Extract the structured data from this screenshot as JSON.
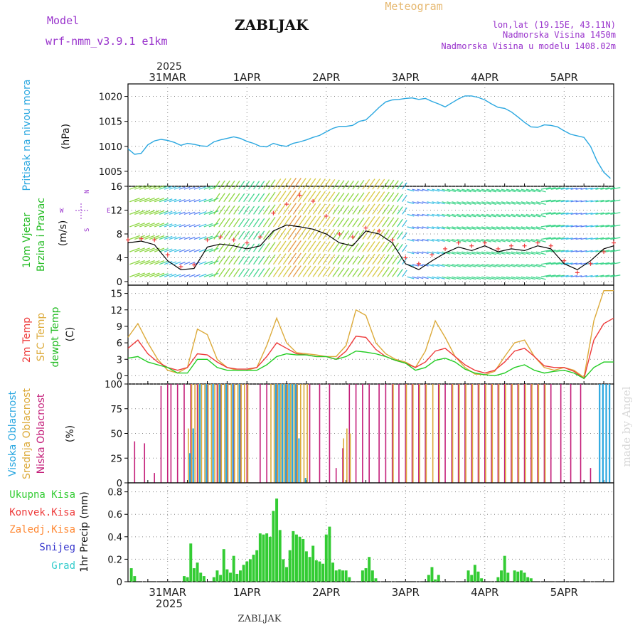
{
  "header": {
    "model_label": "Model",
    "model_name": "wrf-nmm_v3.9.1  e1km",
    "location_title": "ZABLJAK",
    "product": "Meteogram",
    "coords": "lon,lat (19.15E, 43.11N)",
    "elevation": "Nadmorska Visina 1450m",
    "model_elevation": "Nadmorska Visina u modelu 1408.02m"
  },
  "footer": {
    "location_title": "ZABLJAK",
    "credit": "made by Angel"
  },
  "colors": {
    "pressure": "#2aa7e0",
    "temp2m": "#ee3b3b",
    "sfc_temp": "#dcaa3a",
    "dewpt": "#22cc22",
    "wind_speed": "#000000",
    "gust_marker": "#ee3b3b",
    "cloud_high": "#2aa7e0",
    "cloud_mid": "#dcaa3a",
    "cloud_low": "#c41f7a",
    "precip_total": "#33cc33",
    "precip_conv": "#ee3b3b",
    "precip_frz": "#ff8833",
    "precip_snow": "#3333cc",
    "precip_grad": "#33cccc",
    "grid": "#888888",
    "title_gold": "#e6b870",
    "purple": "#9933cc"
  },
  "time_axis": {
    "year_label": "2025",
    "day_labels": [
      "31MAR",
      "1APR",
      "2APR",
      "3APR",
      "4APR",
      "5APR"
    ],
    "day_positions_hours": [
      12,
      36,
      60,
      84,
      108,
      132
    ],
    "range_hours": [
      0,
      147
    ]
  },
  "chart_data": [
    {
      "type": "line",
      "panel": "pressure",
      "ylabel_side": "Pritisak na nivou mora",
      "ylabel": "(hPa)",
      "yticks": [
        "1020",
        "1015",
        "1010",
        "1005"
      ],
      "ylim": [
        1002,
        1022.5
      ],
      "grid": true,
      "x_hours": [
        0,
        2,
        4,
        6,
        8,
        10,
        12,
        14,
        16,
        18,
        20,
        22,
        24,
        26,
        28,
        30,
        32,
        34,
        36,
        38,
        40,
        42,
        44,
        46,
        48,
        50,
        52,
        54,
        56,
        58,
        60,
        62,
        64,
        66,
        68,
        70,
        72,
        74,
        76,
        78,
        80,
        82,
        84,
        86,
        88,
        90,
        92,
        94,
        96,
        98,
        100,
        102,
        104,
        106,
        108,
        110,
        112,
        114,
        116,
        118,
        120,
        122,
        124,
        126,
        128,
        130,
        132,
        134,
        136,
        138,
        140,
        142,
        144,
        146
      ],
      "series": [
        {
          "values": [
            1009.5,
            1008.4,
            1008.6,
            1010.3,
            1011.1,
            1011.4,
            1011.2,
            1010.8,
            1010.2,
            1010.6,
            1010.4,
            1010.1,
            1010.0,
            1010.9,
            1011.3,
            1011.6,
            1011.9,
            1011.6,
            1011.0,
            1010.6,
            1010.0,
            1009.9,
            1010.6,
            1010.2,
            1010.0,
            1010.6,
            1010.9,
            1011.3,
            1011.8,
            1012.2,
            1012.9,
            1013.6,
            1014.0,
            1014.0,
            1014.2,
            1015.0,
            1015.3,
            1016.5,
            1017.8,
            1018.9,
            1019.3,
            1019.4,
            1019.6,
            1019.7,
            1019.4,
            1019.6,
            1019.0,
            1018.5,
            1017.9,
            1018.7,
            1019.5,
            1020.1,
            1020.1,
            1019.8,
            1019.3,
            1018.5,
            1017.8,
            1017.6,
            1016.9,
            1015.9,
            1014.8,
            1013.9,
            1013.8,
            1014.3,
            1014.2,
            1013.9,
            1013.1,
            1012.4,
            1012.1,
            1011.8,
            1010.0,
            1007.0,
            1004.8,
            1003.6
          ]
        }
      ]
    },
    {
      "type": "line",
      "panel": "wind",
      "ylabel_side_1": "10m Vjetar",
      "ylabel_side_2": "Brzina i Pravac",
      "ylabel": "(m/s)",
      "compass_labels": [
        "N",
        "W",
        "E",
        "S"
      ],
      "yticks": [
        "16",
        "12",
        "8",
        "4",
        "0"
      ],
      "ylim": [
        -0.6,
        16
      ],
      "grid": true,
      "x_hours": [
        0,
        4,
        8,
        12,
        16,
        20,
        24,
        28,
        32,
        36,
        40,
        44,
        48,
        52,
        56,
        60,
        64,
        68,
        72,
        76,
        80,
        84,
        88,
        92,
        96,
        100,
        104,
        108,
        112,
        116,
        120,
        124,
        128,
        132,
        136,
        140,
        144,
        147
      ],
      "series": [
        {
          "name": "speed",
          "values": [
            6.5,
            6.8,
            6.2,
            3.5,
            2.0,
            2.2,
            5.8,
            6.3,
            6.0,
            5.5,
            6.0,
            8.5,
            9.5,
            9.2,
            8.8,
            8.0,
            6.5,
            6.0,
            8.5,
            8.0,
            6.5,
            3.0,
            2.0,
            3.5,
            4.8,
            5.8,
            5.2,
            6.0,
            5.0,
            5.5,
            5.2,
            6.0,
            5.5,
            3.0,
            2.0,
            3.5,
            5.5,
            6.0
          ]
        },
        {
          "name": "gust",
          "values": [
            7.0,
            7.2,
            7.0,
            4.5,
            2.5,
            2.8,
            7.0,
            7.5,
            7.0,
            6.5,
            7.5,
            11.5,
            13.0,
            14.5,
            13.5,
            11.0,
            8.0,
            7.5,
            9.0,
            8.5,
            7.0,
            4.0,
            3.0,
            4.5,
            5.5,
            6.5,
            6.0,
            6.5,
            5.5,
            6.0,
            6.0,
            6.5,
            6.0,
            3.5,
            1.5,
            3.0,
            5.0,
            6.5
          ]
        }
      ]
    },
    {
      "type": "line",
      "panel": "temperature",
      "ylabel_side_1": "2m Temp",
      "ylabel_side_2": "SFC Temp",
      "ylabel_side_3": "dewpt Temp",
      "ylabel": "(C)",
      "yticks": [
        "15",
        "12",
        "9",
        "6",
        "3",
        "0"
      ],
      "ylim": [
        -1.5,
        16.5
      ],
      "grid": true,
      "x_hours": [
        0,
        3,
        6,
        9,
        12,
        15,
        18,
        21,
        24,
        27,
        30,
        33,
        36,
        39,
        42,
        45,
        48,
        51,
        54,
        57,
        60,
        63,
        66,
        69,
        72,
        75,
        78,
        81,
        84,
        87,
        90,
        93,
        96,
        99,
        102,
        105,
        108,
        111,
        114,
        117,
        120,
        123,
        126,
        129,
        132,
        135,
        138,
        141,
        144,
        147
      ],
      "series": [
        {
          "name": "2m Temp",
          "values": [
            5.0,
            6.5,
            4.0,
            2.5,
            1.5,
            1.0,
            1.5,
            4.0,
            3.8,
            2.5,
            1.5,
            1.2,
            1.2,
            1.5,
            3.5,
            6.0,
            5.0,
            4.0,
            3.8,
            3.5,
            3.5,
            3.0,
            4.5,
            7.2,
            7.0,
            4.8,
            3.5,
            2.8,
            2.3,
            1.5,
            2.5,
            4.5,
            5.0,
            3.5,
            2.0,
            1.0,
            0.5,
            1.0,
            2.5,
            4.5,
            5.0,
            3.5,
            1.8,
            1.5,
            1.5,
            0.8,
            -0.5,
            6.5,
            9.5,
            10.5
          ]
        },
        {
          "name": "SFC Temp",
          "values": [
            7.0,
            9.5,
            6.0,
            3.0,
            1.0,
            0.5,
            1.5,
            8.5,
            7.5,
            3.0,
            1.5,
            1.0,
            1.0,
            1.5,
            5.5,
            10.5,
            6.0,
            4.2,
            4.0,
            3.8,
            3.5,
            3.5,
            5.5,
            12.0,
            11.0,
            6.0,
            4.0,
            3.0,
            2.5,
            1.5,
            4.5,
            10.0,
            7.0,
            3.5,
            1.5,
            0.3,
            0.2,
            0.8,
            3.5,
            6.0,
            6.5,
            3.5,
            1.5,
            1.0,
            1.5,
            1.0,
            -0.3,
            10.0,
            15.5,
            15.5
          ]
        },
        {
          "name": "dewpt Temp",
          "values": [
            3.2,
            3.5,
            2.5,
            2.0,
            1.5,
            0.5,
            0.5,
            3.0,
            3.0,
            1.5,
            1.0,
            1.0,
            1.0,
            1.0,
            2.0,
            3.5,
            4.0,
            3.8,
            3.8,
            3.5,
            3.5,
            3.0,
            3.5,
            4.5,
            4.3,
            4.0,
            3.5,
            2.8,
            2.3,
            1.0,
            1.5,
            2.8,
            3.2,
            2.5,
            1.2,
            0.5,
            0.2,
            0.0,
            0.5,
            1.5,
            2.0,
            1.0,
            0.5,
            0.8,
            1.0,
            0.5,
            -0.5,
            1.5,
            2.5,
            2.5
          ]
        }
      ]
    },
    {
      "type": "bar",
      "panel": "clouds",
      "ylabel_side_1": "Visoka Oblacnost",
      "ylabel_side_2": "Srednja Oblacnost",
      "ylabel_side_3": "Niska Oblacnost",
      "ylabel": "(%)",
      "yticks": [
        "100",
        "75",
        "50",
        "25",
        "0"
      ],
      "ylim": [
        0,
        100
      ],
      "grid": true,
      "series": [
        {
          "name": "Niska Oblacnost",
          "x_hours": [
            2,
            5,
            8,
            10,
            12,
            13,
            15,
            17,
            19,
            21,
            24,
            27,
            28,
            30,
            32,
            34,
            36,
            40,
            42,
            45,
            48,
            51,
            55,
            58,
            61,
            63,
            65,
            67,
            69,
            71,
            73,
            76,
            78,
            80,
            82,
            84,
            86,
            88,
            90,
            94,
            96,
            98,
            100,
            102,
            104,
            106,
            108,
            110,
            112,
            114,
            116,
            118,
            120,
            122,
            124,
            126,
            128,
            131,
            134,
            137,
            140
          ],
          "values": [
            42,
            40,
            10,
            98,
            100,
            100,
            100,
            100,
            100,
            100,
            100,
            100,
            100,
            100,
            100,
            100,
            100,
            100,
            100,
            100,
            100,
            100,
            100,
            100,
            100,
            15,
            35,
            100,
            100,
            100,
            100,
            100,
            100,
            100,
            100,
            100,
            100,
            100,
            100,
            100,
            100,
            100,
            100,
            100,
            100,
            100,
            100,
            100,
            100,
            100,
            100,
            100,
            100,
            100,
            100,
            100,
            100,
            100,
            100,
            100,
            15
          ]
        },
        {
          "name": "Srednja Oblacnost",
          "x_hours": [
            18,
            19,
            20,
            21,
            22,
            23,
            24,
            25,
            26,
            27,
            28,
            29,
            30,
            31,
            32,
            33,
            34,
            35,
            36,
            43,
            44,
            45,
            46,
            47,
            48,
            49,
            50,
            51,
            52,
            53,
            54,
            65,
            66,
            67,
            80,
            84,
            86,
            88,
            90,
            92,
            94,
            98,
            100,
            102,
            104,
            106,
            108,
            110,
            112,
            114,
            116,
            118,
            120,
            122,
            124,
            126
          ],
          "values": [
            55,
            100,
            100,
            100,
            100,
            100,
            100,
            100,
            100,
            100,
            100,
            100,
            100,
            100,
            100,
            100,
            100,
            100,
            100,
            100,
            100,
            100,
            100,
            100,
            100,
            100,
            100,
            100,
            100,
            100,
            100,
            45,
            55,
            50,
            100,
            100,
            100,
            100,
            100,
            100,
            100,
            100,
            100,
            100,
            100,
            100,
            100,
            100,
            100,
            100,
            100,
            100,
            100,
            100,
            100,
            100
          ]
        },
        {
          "name": "Visoka Oblacnost",
          "x_hours": [
            19,
            20,
            22,
            24,
            26,
            28,
            30,
            32,
            34,
            45,
            46,
            47,
            48,
            49,
            50,
            51,
            52,
            54,
            143,
            144,
            145,
            146
          ],
          "values": [
            30,
            55,
            100,
            100,
            100,
            100,
            100,
            100,
            100,
            100,
            100,
            100,
            100,
            100,
            100,
            100,
            45,
            5,
            100,
            100,
            100,
            100
          ]
        }
      ]
    },
    {
      "type": "bar",
      "panel": "precipitation",
      "legend": [
        "Ukupna Kisa",
        "Konvek.Kisa",
        "Zaledj.Kisa",
        "Snijeg",
        "Grad"
      ],
      "ylabel": "1hr Precip (mm)",
      "yticks": [
        "0.8",
        "0.6",
        "0.4",
        "0.2",
        "0"
      ],
      "ylim": [
        0,
        0.88
      ],
      "grid": true,
      "x_hours": [
        1,
        2,
        17,
        18,
        19,
        20,
        21,
        22,
        23,
        26,
        27,
        28,
        29,
        30,
        31,
        32,
        33,
        34,
        35,
        36,
        37,
        38,
        39,
        40,
        41,
        42,
        43,
        44,
        45,
        46,
        47,
        48,
        49,
        50,
        51,
        52,
        53,
        54,
        55,
        56,
        57,
        58,
        59,
        60,
        61,
        62,
        63,
        64,
        65,
        66,
        67,
        71,
        72,
        73,
        74,
        75,
        91,
        92,
        93,
        94,
        103,
        104,
        105,
        106,
        107,
        112,
        113,
        114,
        115,
        117,
        118,
        119,
        120,
        121,
        122
      ],
      "series": [
        {
          "name": "Ukupna Kisa",
          "values": [
            0.12,
            0.05,
            0.05,
            0.04,
            0.34,
            0.12,
            0.17,
            0.08,
            0.05,
            0.04,
            0.1,
            0.06,
            0.29,
            0.11,
            0.08,
            0.23,
            0.07,
            0.1,
            0.15,
            0.18,
            0.2,
            0.24,
            0.28,
            0.43,
            0.42,
            0.43,
            0.4,
            0.63,
            0.74,
            0.46,
            0.2,
            0.13,
            0.28,
            0.45,
            0.42,
            0.4,
            0.38,
            0.27,
            0.22,
            0.32,
            0.19,
            0.18,
            0.16,
            0.42,
            0.49,
            0.17,
            0.1,
            0.11,
            0.1,
            0.1,
            0.04,
            0.1,
            0.12,
            0.22,
            0.1,
            0.03,
            0.06,
            0.13,
            0.02,
            0.06,
            0.1,
            0.06,
            0.15,
            0.09,
            0.03,
            0.04,
            0.1,
            0.23,
            0.08,
            0.1,
            0.09,
            0.1,
            0.08,
            0.04,
            0.03
          ]
        }
      ]
    }
  ]
}
